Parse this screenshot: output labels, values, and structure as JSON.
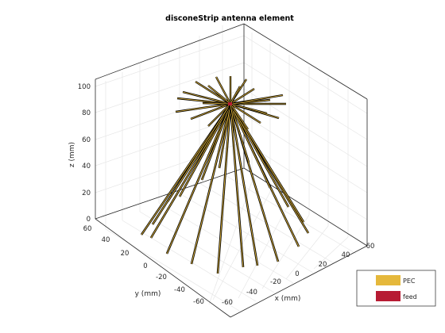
{
  "figure": {
    "title": "disconeStrip antenna element",
    "xlabel": "x (mm)",
    "ylabel": "y (mm)",
    "zlabel": "z (mm)"
  },
  "axes": {
    "x_ticks": [
      "-60",
      "-40",
      "-20",
      "0",
      "20",
      "40",
      "60"
    ],
    "y_ticks": [
      "60",
      "40",
      "20",
      "0",
      "-20",
      "-40",
      "-60"
    ],
    "z_ticks": [
      "0",
      "20",
      "40",
      "60",
      "80",
      "100"
    ],
    "grid": true
  },
  "legend": {
    "items": [
      {
        "label": "PEC",
        "color": "#e5b83b"
      },
      {
        "label": "feed",
        "color": "#b71b33"
      }
    ]
  },
  "colors": {
    "strip_edge": "#000000",
    "strip_fill": "#e5b83b",
    "feed": "#b71b33",
    "box": "#262626",
    "grid": "#e6e6e6"
  }
}
